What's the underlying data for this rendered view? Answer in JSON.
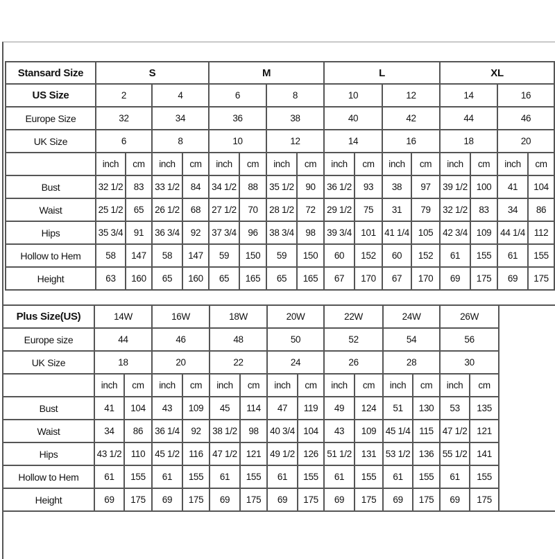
{
  "standard": {
    "header_label": "Stansard Size",
    "groups": [
      "S",
      "M",
      "L",
      "XL"
    ],
    "us_label": "US Size",
    "us": [
      "2",
      "4",
      "6",
      "8",
      "10",
      "12",
      "14",
      "16"
    ],
    "europe_label": "Europe Size",
    "europe": [
      "32",
      "34",
      "36",
      "38",
      "40",
      "42",
      "44",
      "46"
    ],
    "uk_label": "UK Size",
    "uk": [
      "6",
      "8",
      "10",
      "12",
      "14",
      "16",
      "18",
      "20"
    ],
    "units": [
      "inch",
      "cm"
    ],
    "measurements": [
      {
        "label": "Bust",
        "values": [
          "32 1/2",
          "83",
          "33 1/2",
          "84",
          "34 1/2",
          "88",
          "35 1/2",
          "90",
          "36 1/2",
          "93",
          "38",
          "97",
          "39 1/2",
          "100",
          "41",
          "104"
        ]
      },
      {
        "label": "Waist",
        "values": [
          "25 1/2",
          "65",
          "26 1/2",
          "68",
          "27 1/2",
          "70",
          "28 1/2",
          "72",
          "29 1/2",
          "75",
          "31",
          "79",
          "32 1/2",
          "83",
          "34",
          "86"
        ]
      },
      {
        "label": "Hips",
        "values": [
          "35 3/4",
          "91",
          "36 3/4",
          "92",
          "37 3/4",
          "96",
          "38 3/4",
          "98",
          "39 3/4",
          "101",
          "41 1/4",
          "105",
          "42 3/4",
          "109",
          "44 1/4",
          "112"
        ]
      },
      {
        "label": "Hollow to Hem",
        "values": [
          "58",
          "147",
          "58",
          "147",
          "59",
          "150",
          "59",
          "150",
          "60",
          "152",
          "60",
          "152",
          "61",
          "155",
          "61",
          "155"
        ]
      },
      {
        "label": "Height",
        "values": [
          "63",
          "160",
          "65",
          "160",
          "65",
          "165",
          "65",
          "165",
          "67",
          "170",
          "67",
          "170",
          "69",
          "175",
          "69",
          "175"
        ]
      }
    ]
  },
  "plus": {
    "header_label": "Plus Size(US)",
    "sizes": [
      "14W",
      "16W",
      "18W",
      "20W",
      "22W",
      "24W",
      "26W"
    ],
    "europe_label": "Europe size",
    "europe": [
      "44",
      "46",
      "48",
      "50",
      "52",
      "54",
      "56"
    ],
    "uk_label": "UK Size",
    "uk": [
      "18",
      "20",
      "22",
      "24",
      "26",
      "28",
      "30"
    ],
    "units": [
      "inch",
      "cm"
    ],
    "measurements": [
      {
        "label": "Bust",
        "values": [
          "41",
          "104",
          "43",
          "109",
          "45",
          "114",
          "47",
          "119",
          "49",
          "124",
          "51",
          "130",
          "53",
          "135"
        ]
      },
      {
        "label": "Waist",
        "values": [
          "34",
          "86",
          "36 1/4",
          "92",
          "38 1/2",
          "98",
          "40 3/4",
          "104",
          "43",
          "109",
          "45 1/4",
          "115",
          "47 1/2",
          "121"
        ]
      },
      {
        "label": "Hips",
        "values": [
          "43 1/2",
          "110",
          "45 1/2",
          "116",
          "47 1/2",
          "121",
          "49 1/2",
          "126",
          "51 1/2",
          "131",
          "53 1/2",
          "136",
          "55 1/2",
          "141"
        ]
      },
      {
        "label": "Hollow to Hem",
        "values": [
          "61",
          "155",
          "61",
          "155",
          "61",
          "155",
          "61",
          "155",
          "61",
          "155",
          "61",
          "155",
          "61",
          "155"
        ]
      },
      {
        "label": "Height",
        "values": [
          "69",
          "175",
          "69",
          "175",
          "69",
          "175",
          "69",
          "175",
          "69",
          "175",
          "69",
          "175",
          "69",
          "175"
        ]
      }
    ]
  }
}
